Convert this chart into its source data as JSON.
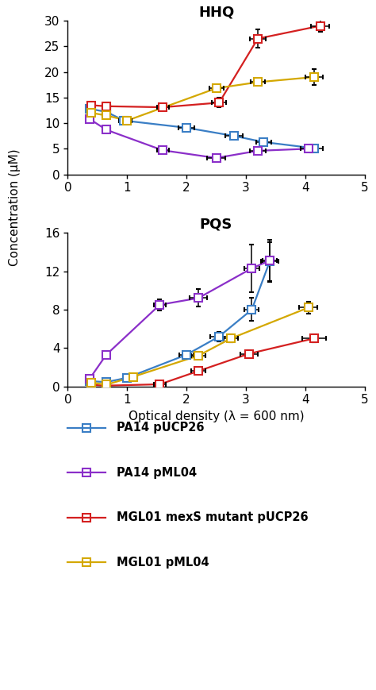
{
  "hhq": {
    "title": "HHQ",
    "ylim": [
      0,
      30
    ],
    "yticks": [
      0,
      5,
      10,
      15,
      20,
      25,
      30
    ],
    "series": {
      "PA14 pUCP26": {
        "color": "#3a7ec5",
        "x": [
          0.37,
          0.65,
          0.95,
          2.0,
          2.8,
          3.3,
          4.15
        ],
        "y": [
          12.8,
          12.2,
          10.5,
          9.1,
          7.5,
          6.3,
          5.1
        ],
        "xerr": [
          0.05,
          0.07,
          0.08,
          0.13,
          0.15,
          0.13,
          0.15
        ],
        "yerr": [
          0.4,
          0.5,
          0.4,
          0.5,
          0.5,
          0.4,
          0.4
        ]
      },
      "PA14 pML04": {
        "color": "#8b2fc9",
        "x": [
          0.37,
          0.65,
          1.6,
          2.5,
          3.2,
          4.05
        ],
        "y": [
          10.8,
          8.7,
          4.7,
          3.2,
          4.6,
          5.0
        ],
        "xerr": [
          0.05,
          0.07,
          0.1,
          0.15,
          0.13,
          0.13
        ],
        "yerr": [
          0.5,
          0.5,
          0.3,
          0.3,
          0.4,
          0.4
        ]
      },
      "MGL01 mexS mutant pUCP26": {
        "color": "#d42020",
        "x": [
          0.4,
          0.65,
          1.6,
          2.55,
          3.2,
          4.25
        ],
        "y": [
          13.5,
          13.3,
          13.1,
          14.0,
          26.5,
          29.0
        ],
        "xerr": [
          0.05,
          0.07,
          0.1,
          0.12,
          0.13,
          0.15
        ],
        "yerr": [
          0.5,
          0.5,
          0.5,
          0.9,
          1.8,
          1.2
        ]
      },
      "MGL01 pML04": {
        "color": "#d4a800",
        "x": [
          0.4,
          0.65,
          1.0,
          2.5,
          3.2,
          4.15
        ],
        "y": [
          12.0,
          11.5,
          10.5,
          16.8,
          18.0,
          19.0
        ],
        "xerr": [
          0.05,
          0.07,
          0.08,
          0.12,
          0.12,
          0.15
        ],
        "yerr": [
          0.5,
          0.5,
          0.5,
          0.6,
          0.5,
          1.5
        ]
      }
    }
  },
  "pqs": {
    "title": "PQS",
    "ylim": [
      0,
      16
    ],
    "yticks": [
      0,
      4,
      8,
      12,
      16
    ],
    "series": {
      "PA14 pUCP26": {
        "color": "#3a7ec5",
        "x": [
          0.37,
          0.65,
          1.0,
          2.0,
          2.55,
          3.1,
          3.4
        ],
        "y": [
          0.55,
          0.45,
          0.9,
          3.3,
          5.2,
          8.0,
          13.0
        ],
        "xerr": [
          0.04,
          0.05,
          0.07,
          0.12,
          0.15,
          0.12,
          0.15
        ],
        "yerr": [
          0.1,
          0.1,
          0.15,
          0.3,
          0.5,
          1.2,
          2.0
        ]
      },
      "PA14 pML04": {
        "color": "#8b2fc9",
        "x": [
          0.37,
          0.65,
          1.55,
          2.2,
          3.1,
          3.4
        ],
        "y": [
          0.8,
          3.3,
          8.5,
          9.2,
          12.3,
          13.1
        ],
        "xerr": [
          0.04,
          0.05,
          0.1,
          0.15,
          0.13,
          0.12
        ],
        "yerr": [
          0.2,
          0.3,
          0.6,
          0.9,
          2.5,
          2.2
        ]
      },
      "MGL01 mexS mutant pUCP26": {
        "color": "#d42020",
        "x": [
          0.4,
          0.65,
          1.55,
          2.2,
          3.05,
          4.15
        ],
        "y": [
          0.15,
          0.08,
          0.22,
          1.6,
          3.4,
          5.0
        ],
        "xerr": [
          0.04,
          0.05,
          0.1,
          0.12,
          0.15,
          0.2
        ],
        "yerr": [
          0.05,
          0.05,
          0.1,
          0.3,
          0.4,
          0.4
        ]
      },
      "MGL01 pML04": {
        "color": "#d4a800",
        "x": [
          0.4,
          0.65,
          1.1,
          2.2,
          2.75,
          4.05
        ],
        "y": [
          0.4,
          0.18,
          1.0,
          3.2,
          5.0,
          8.2
        ],
        "xerr": [
          0.04,
          0.05,
          0.07,
          0.12,
          0.12,
          0.15
        ],
        "yerr": [
          0.1,
          0.08,
          0.2,
          0.3,
          0.4,
          0.6
        ]
      }
    }
  },
  "xlabel": "Optical density (λ = 600 nm)",
  "ylabel": "Concentration (μM)",
  "xlim": [
    0,
    5
  ],
  "xticks": [
    0,
    1,
    2,
    3,
    4,
    5
  ],
  "legend_order": [
    "PA14 pUCP26",
    "PA14 pML04",
    "MGL01 mexS mutant pUCP26",
    "MGL01 pML04"
  ],
  "legend_colors": {
    "PA14 pUCP26": "#3a7ec5",
    "PA14 pML04": "#8b2fc9",
    "MGL01 mexS mutant pUCP26": "#d42020",
    "MGL01 pML04": "#d4a800"
  },
  "markersize": 7,
  "linewidth": 1.6,
  "capsize": 2.5,
  "elinewidth": 1.1,
  "background_color": "#ffffff"
}
